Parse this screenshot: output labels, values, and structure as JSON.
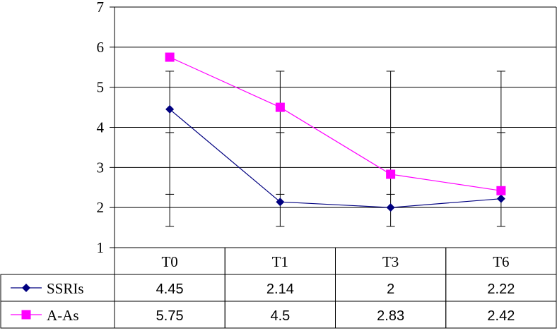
{
  "chart_data": {
    "type": "line",
    "categories": [
      "T0",
      "T1",
      "T3",
      "T6"
    ],
    "ylim": [
      1,
      7
    ],
    "yticks": [
      1,
      2,
      3,
      4,
      5,
      6,
      7
    ],
    "grid": true,
    "legend": "data-table",
    "series": [
      {
        "name": "SSRIs",
        "values": [
          4.45,
          2.14,
          2,
          2.22
        ],
        "color": "#000080",
        "marker": "diamond"
      },
      {
        "name": "A-As",
        "values": [
          5.75,
          4.5,
          2.83,
          2.42
        ],
        "color": "#ff00ff",
        "marker": "square"
      }
    ],
    "error_bars": {
      "upper": 5.4,
      "mid_upper": 3.87,
      "mid_lower": 2.33,
      "lower": 1.53,
      "color": "#000000"
    }
  }
}
